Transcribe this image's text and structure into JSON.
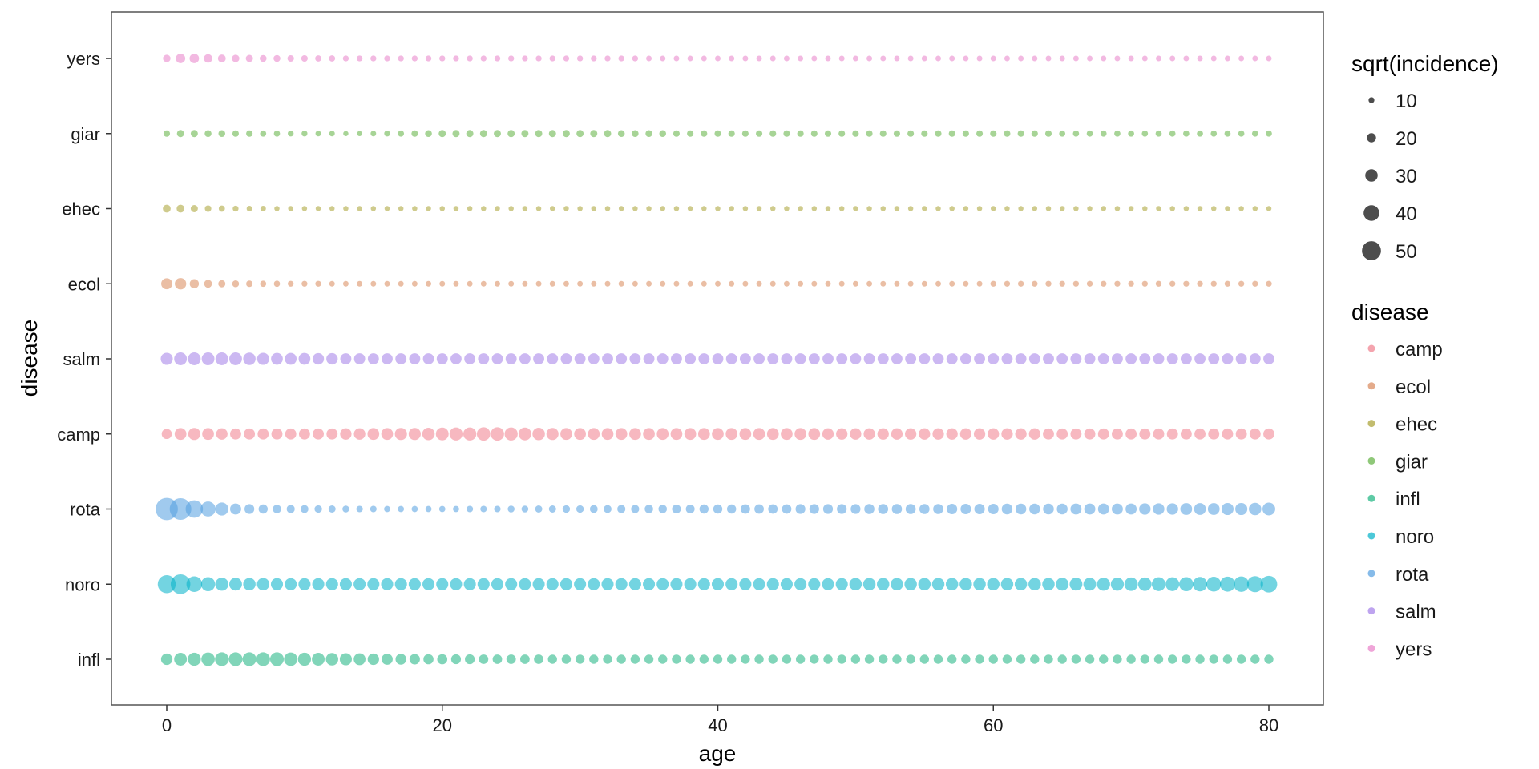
{
  "chart_data": {
    "type": "scatter",
    "title": "",
    "xlabel": "age",
    "ylabel": "disease",
    "xlim": [
      -4,
      84
    ],
    "xticks": [
      0,
      20,
      40,
      60,
      80
    ],
    "categories": [
      "infl",
      "noro",
      "rota",
      "camp",
      "salm",
      "ecol",
      "ehec",
      "giar",
      "yers"
    ],
    "x": [
      0,
      1,
      2,
      3,
      4,
      5,
      6,
      7,
      8,
      9,
      10,
      11,
      12,
      13,
      14,
      15,
      16,
      17,
      18,
      19,
      20,
      21,
      22,
      23,
      24,
      25,
      26,
      27,
      28,
      29,
      30,
      31,
      32,
      33,
      34,
      35,
      36,
      37,
      38,
      39,
      40,
      41,
      42,
      43,
      44,
      45,
      46,
      47,
      48,
      49,
      50,
      51,
      52,
      53,
      54,
      55,
      56,
      57,
      58,
      59,
      60,
      61,
      62,
      63,
      64,
      65,
      66,
      67,
      68,
      69,
      70,
      71,
      72,
      73,
      74,
      75,
      76,
      77,
      78,
      79,
      80
    ],
    "series": [
      {
        "name": "infl",
        "color": "#1ab37f",
        "values": [
          27,
          31,
          32,
          33,
          34,
          34,
          34,
          34,
          34,
          33,
          32,
          31,
          30,
          29,
          28,
          27,
          26,
          25,
          24,
          23,
          23,
          22,
          22,
          21,
          21,
          21,
          21,
          21,
          20,
          20,
          20,
          20,
          20,
          20,
          20,
          20,
          20,
          20,
          20,
          20,
          20,
          20,
          20,
          20,
          20,
          20,
          20,
          20,
          20,
          20,
          20,
          20,
          20,
          20,
          20,
          20,
          20,
          20,
          20,
          20,
          20,
          20,
          20,
          20,
          20,
          20,
          20,
          20,
          20,
          20,
          20,
          20,
          20,
          20,
          20,
          20,
          20,
          20,
          20,
          20,
          20
        ]
      },
      {
        "name": "noro",
        "color": "#00b0c8",
        "values": [
          47,
          52,
          40,
          35,
          32,
          31,
          30,
          30,
          29,
          29,
          29,
          29,
          29,
          29,
          29,
          29,
          29,
          29,
          29,
          29,
          29,
          29,
          29,
          29,
          29,
          29,
          29,
          29,
          29,
          29,
          29,
          29,
          29,
          29,
          29,
          29,
          29,
          29,
          29,
          29,
          29,
          29,
          29,
          29,
          29,
          29,
          29,
          29,
          29,
          29,
          30,
          30,
          30,
          30,
          30,
          30,
          30,
          30,
          30,
          30,
          30,
          30,
          30,
          30,
          30,
          31,
          31,
          31,
          32,
          32,
          33,
          33,
          34,
          34,
          35,
          36,
          37,
          38,
          39,
          41,
          43
        ]
      },
      {
        "name": "rota",
        "color": "#529ee0",
        "values": [
          60,
          58,
          45,
          38,
          32,
          26,
          22,
          20,
          18,
          17,
          16,
          15,
          14,
          13,
          12,
          12,
          11,
          11,
          11,
          11,
          11,
          11,
          12,
          12,
          12,
          13,
          13,
          14,
          14,
          15,
          15,
          16,
          16,
          17,
          17,
          18,
          18,
          19,
          19,
          20,
          20,
          20,
          21,
          21,
          21,
          21,
          22,
          22,
          22,
          22,
          22,
          23,
          23,
          23,
          23,
          23,
          23,
          24,
          24,
          24,
          24,
          25,
          25,
          25,
          25,
          25,
          26,
          26,
          26,
          26,
          26,
          27,
          27,
          27,
          28,
          28,
          28,
          29,
          29,
          30,
          31
        ]
      },
      {
        "name": "camp",
        "color": "#f07d8c",
        "values": [
          23,
          28,
          29,
          28,
          27,
          26,
          26,
          26,
          26,
          26,
          26,
          26,
          26,
          27,
          27,
          28,
          28,
          29,
          29,
          30,
          31,
          32,
          32,
          33,
          33,
          32,
          31,
          30,
          29,
          28,
          28,
          28,
          28,
          28,
          28,
          28,
          28,
          28,
          28,
          28,
          28,
          28,
          28,
          28,
          28,
          28,
          28,
          28,
          27,
          27,
          27,
          27,
          27,
          27,
          27,
          27,
          27,
          27,
          27,
          27,
          27,
          27,
          27,
          27,
          26,
          26,
          26,
          26,
          26,
          26,
          26,
          26,
          26,
          26,
          26,
          26,
          26,
          26,
          26,
          26,
          26
        ]
      },
      {
        "name": "salm",
        "color": "#a27ee8",
        "values": [
          29,
          31,
          31,
          31,
          31,
          31,
          30,
          29,
          28,
          28,
          28,
          27,
          27,
          26,
          26,
          26,
          26,
          26,
          26,
          26,
          26,
          26,
          26,
          26,
          26,
          26,
          26,
          26,
          26,
          26,
          26,
          26,
          26,
          26,
          26,
          26,
          26,
          26,
          26,
          26,
          26,
          26,
          26,
          26,
          26,
          26,
          26,
          26,
          26,
          26,
          26,
          26,
          26,
          26,
          26,
          26,
          26,
          26,
          26,
          26,
          26,
          26,
          26,
          26,
          26,
          26,
          26,
          26,
          26,
          26,
          26,
          26,
          26,
          26,
          26,
          26,
          26,
          26,
          26,
          26,
          26
        ]
      },
      {
        "name": "ecol",
        "color": "#d8885a",
        "values": [
          26,
          27,
          20,
          16,
          14,
          13,
          12,
          11,
          11,
          10,
          10,
          10,
          9,
          9,
          9,
          9,
          9,
          9,
          9,
          9,
          9,
          9,
          9,
          9,
          9,
          9,
          9,
          9,
          9,
          9,
          9,
          9,
          9,
          9,
          9,
          9,
          9,
          9,
          9,
          9,
          9,
          9,
          9,
          9,
          9,
          9,
          9,
          9,
          9,
          9,
          9,
          9,
          9,
          9,
          9,
          9,
          9,
          9,
          9,
          9,
          10,
          10,
          10,
          10,
          10,
          10,
          10,
          10,
          10,
          10,
          10,
          10,
          10,
          10,
          10,
          10,
          10,
          10,
          10,
          10,
          10
        ]
      },
      {
        "name": "ehec",
        "color": "#a8a030",
        "values": [
          16,
          16,
          14,
          12,
          11,
          10,
          9,
          9,
          8,
          8,
          8,
          8,
          8,
          8,
          8,
          8,
          8,
          8,
          8,
          8,
          8,
          8,
          8,
          8,
          8,
          8,
          8,
          8,
          8,
          8,
          8,
          8,
          8,
          8,
          8,
          8,
          8,
          8,
          8,
          8,
          8,
          8,
          8,
          8,
          8,
          8,
          8,
          8,
          8,
          8,
          8,
          8,
          8,
          8,
          8,
          8,
          8,
          8,
          8,
          8,
          8,
          8,
          8,
          8,
          8,
          8,
          8,
          8,
          8,
          8,
          8,
          8,
          8,
          8,
          8,
          8,
          8,
          8,
          8,
          8,
          8
        ]
      },
      {
        "name": "giar",
        "color": "#5fb040",
        "values": [
          12,
          14,
          14,
          13,
          13,
          12,
          12,
          11,
          11,
          10,
          10,
          9,
          9,
          8,
          8,
          9,
          10,
          11,
          12,
          13,
          14,
          14,
          14,
          14,
          14,
          14,
          14,
          14,
          14,
          14,
          14,
          14,
          14,
          13,
          13,
          13,
          13,
          12,
          12,
          12,
          12,
          12,
          12,
          12,
          12,
          12,
          12,
          12,
          12,
          12,
          12,
          12,
          12,
          12,
          12,
          12,
          12,
          12,
          12,
          12,
          12,
          12,
          12,
          12,
          12,
          11,
          11,
          11,
          11,
          11,
          11,
          11,
          11,
          11,
          11,
          11,
          11,
          11,
          11,
          11,
          11
        ]
      },
      {
        "name": "yers",
        "color": "#e87fc8",
        "values": [
          15,
          21,
          21,
          18,
          16,
          15,
          14,
          13,
          13,
          12,
          12,
          11,
          11,
          10,
          10,
          10,
          10,
          10,
          10,
          10,
          10,
          10,
          10,
          10,
          10,
          10,
          10,
          10,
          10,
          10,
          10,
          10,
          10,
          10,
          10,
          9,
          9,
          9,
          9,
          9,
          9,
          9,
          9,
          9,
          9,
          9,
          9,
          9,
          9,
          9,
          9,
          9,
          9,
          9,
          9,
          9,
          9,
          9,
          9,
          9,
          9,
          9,
          9,
          9,
          9,
          9,
          9,
          9,
          9,
          9,
          9,
          9,
          9,
          9,
          9,
          9,
          9,
          9,
          9,
          9,
          9
        ]
      }
    ],
    "legend_size": {
      "title": "sqrt(incidence)",
      "values": [
        10,
        20,
        30,
        40,
        50
      ],
      "labels": [
        "10",
        "20",
        "30",
        "40",
        "50"
      ],
      "color": "#3a3a3a"
    },
    "legend_color": {
      "title": "disease",
      "entries": [
        "camp",
        "ecol",
        "ehec",
        "giar",
        "infl",
        "noro",
        "rota",
        "salm",
        "yers"
      ]
    },
    "point_alpha": 0.55,
    "legend_placement": "right",
    "grid": false
  }
}
